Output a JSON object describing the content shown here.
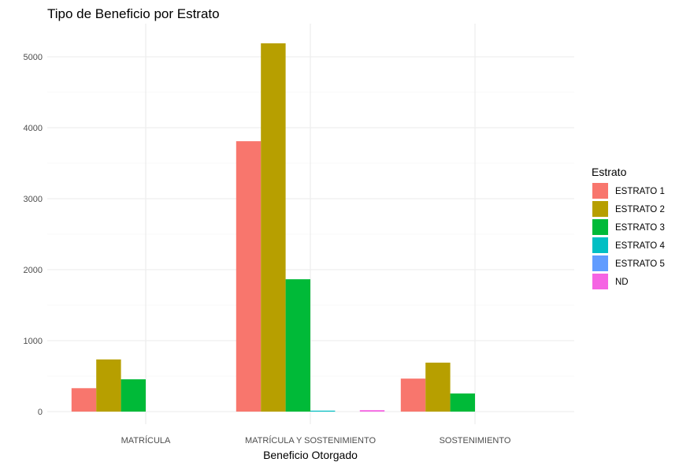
{
  "chart_data": {
    "type": "bar",
    "title": "Tipo de Beneficio por Estrato",
    "xlabel": "Beneficio Otorgado",
    "ylabel": "",
    "categories": [
      "MATRÍCULA",
      "MATRÍCULA Y SOSTENIMIENTO",
      "SOSTENIMIENTO"
    ],
    "ylim": [
      0,
      5400
    ],
    "yticks": [
      0,
      1000,
      2000,
      3000,
      4000,
      5000
    ],
    "grid": true,
    "legend": {
      "title": "Estrato",
      "position": "right"
    },
    "series": [
      {
        "name": "ESTRATO 1",
        "color": "#F8766D",
        "values": [
          330,
          3810,
          465
        ]
      },
      {
        "name": "ESTRATO 2",
        "color": "#B79F00",
        "values": [
          735,
          5190,
          690
        ]
      },
      {
        "name": "ESTRATO 3",
        "color": "#00BA38",
        "values": [
          455,
          1865,
          255
        ]
      },
      {
        "name": "ESTRATO 4",
        "color": "#00BFC4",
        "values": [
          null,
          10,
          null
        ]
      },
      {
        "name": "ESTRATO 5",
        "color": "#619CFF",
        "values": [
          null,
          null,
          null
        ]
      },
      {
        "name": "ND",
        "color": "#F564E3",
        "values": [
          null,
          20,
          null
        ]
      }
    ]
  }
}
